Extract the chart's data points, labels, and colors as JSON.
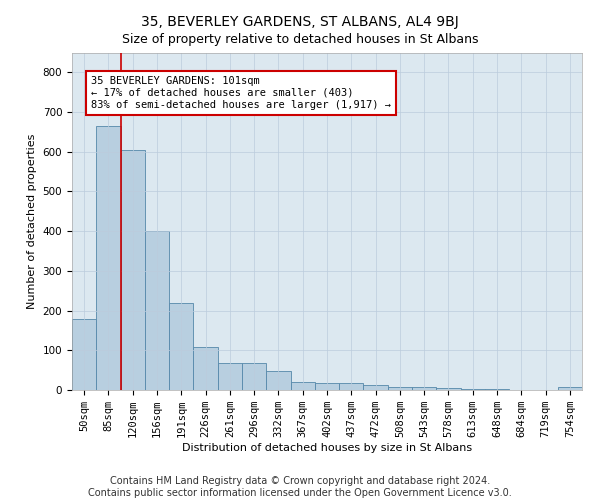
{
  "title": "35, BEVERLEY GARDENS, ST ALBANS, AL4 9BJ",
  "subtitle": "Size of property relative to detached houses in St Albans",
  "xlabel": "Distribution of detached houses by size in St Albans",
  "ylabel": "Number of detached properties",
  "footer_line1": "Contains HM Land Registry data © Crown copyright and database right 2024.",
  "footer_line2": "Contains public sector information licensed under the Open Government Licence v3.0.",
  "categories": [
    "50sqm",
    "85sqm",
    "120sqm",
    "156sqm",
    "191sqm",
    "226sqm",
    "261sqm",
    "296sqm",
    "332sqm",
    "367sqm",
    "402sqm",
    "437sqm",
    "472sqm",
    "508sqm",
    "543sqm",
    "578sqm",
    "613sqm",
    "648sqm",
    "684sqm",
    "719sqm",
    "754sqm"
  ],
  "values": [
    178,
    665,
    605,
    400,
    218,
    108,
    67,
    67,
    48,
    20,
    18,
    17,
    13,
    7,
    8,
    4,
    3,
    3,
    1,
    1,
    7
  ],
  "bar_color": "#b8cfe0",
  "bar_edge_color": "#5588aa",
  "red_line_x": 1.5,
  "annotation_text": "35 BEVERLEY GARDENS: 101sqm\n← 17% of detached houses are smaller (403)\n83% of semi-detached houses are larger (1,917) →",
  "annotation_box_color": "#ffffff",
  "annotation_box_edge_color": "#cc0000",
  "red_line_color": "#cc0000",
  "ylim": [
    0,
    850
  ],
  "yticks": [
    0,
    100,
    200,
    300,
    400,
    500,
    600,
    700,
    800
  ],
  "ax_facecolor": "#dce8f0",
  "background_color": "#ffffff",
  "grid_color": "#bbccdd",
  "title_fontsize": 10,
  "axis_label_fontsize": 8,
  "tick_fontsize": 7.5,
  "annotation_fontsize": 7.5,
  "footer_fontsize": 7
}
